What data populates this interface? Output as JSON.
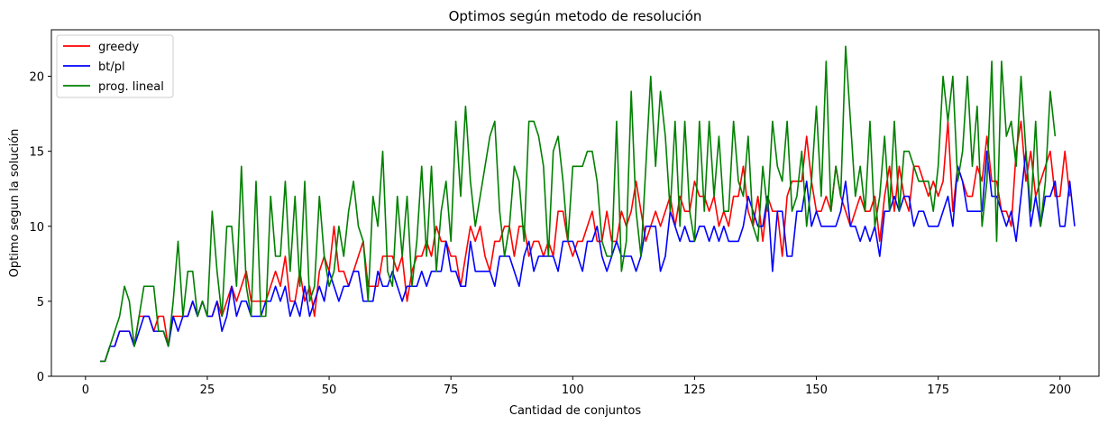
{
  "chart_data": {
    "type": "line",
    "title": "Optimos según metodo de resolución",
    "xlabel": "Cantidad de conjuntos",
    "ylabel": "Optimo segun la solución",
    "xlim": [
      -7,
      208
    ],
    "ylim": [
      0,
      23.1
    ],
    "xticks": [
      0,
      25,
      50,
      75,
      100,
      125,
      150,
      175,
      200
    ],
    "yticks": [
      0,
      5,
      10,
      15,
      20
    ],
    "grid": false,
    "legend_position": "top-left",
    "x_start": 3,
    "series": [
      {
        "name": "greedy",
        "color": "#ff0000",
        "values": [
          1,
          1,
          2,
          2,
          3,
          3,
          3,
          2,
          4,
          4,
          4,
          3,
          4,
          4,
          2,
          4,
          4,
          4,
          4,
          5,
          4,
          5,
          4,
          4,
          5,
          4,
          5,
          6,
          5,
          6,
          7,
          5,
          5,
          5,
          5,
          6,
          7,
          6,
          8,
          5,
          5,
          7,
          5,
          6,
          4,
          7,
          8,
          7,
          10,
          7,
          7,
          6,
          7,
          8,
          9,
          6,
          6,
          6,
          8,
          8,
          8,
          7,
          8,
          5,
          7,
          8,
          8,
          9,
          8,
          10,
          9,
          9,
          8,
          8,
          6,
          8,
          10,
          9,
          10,
          8,
          7,
          9,
          9,
          10,
          10,
          8,
          10,
          10,
          8,
          9,
          9,
          8,
          9,
          8,
          11,
          11,
          9,
          8,
          9,
          9,
          10,
          11,
          9,
          9,
          11,
          9,
          9,
          11,
          10,
          11,
          13,
          11,
          9,
          10,
          11,
          10,
          11,
          12,
          10,
          12,
          11,
          11,
          13,
          12,
          12,
          11,
          12,
          10,
          11,
          10,
          12,
          12,
          14,
          11,
          10,
          12,
          9,
          12,
          11,
          11,
          8,
          12,
          13,
          13,
          13,
          16,
          13,
          11,
          11,
          12,
          11,
          14,
          12,
          11,
          10,
          11,
          12,
          11,
          11,
          12,
          9,
          12,
          14,
          11,
          14,
          12,
          11,
          14,
          14,
          13,
          12,
          13,
          12,
          13,
          17,
          11,
          14,
          13,
          12,
          12,
          14,
          13,
          16,
          13,
          13,
          11,
          11,
          10,
          15,
          17,
          13,
          15,
          12,
          13,
          14,
          15,
          12,
          12,
          15,
          12
        ]
      },
      {
        "name": "bt/pl",
        "color": "#0000ff",
        "values": [
          1,
          1,
          2,
          2,
          3,
          3,
          3,
          2,
          3,
          4,
          4,
          3,
          3,
          3,
          2,
          4,
          3,
          4,
          4,
          5,
          4,
          5,
          4,
          4,
          5,
          3,
          4,
          6,
          4,
          5,
          5,
          4,
          4,
          4,
          5,
          5,
          6,
          5,
          6,
          4,
          5,
          4,
          6,
          4,
          5,
          6,
          5,
          7,
          6,
          5,
          6,
          6,
          7,
          7,
          5,
          5,
          5,
          7,
          6,
          6,
          7,
          6,
          5,
          6,
          6,
          6,
          7,
          6,
          7,
          7,
          7,
          9,
          7,
          7,
          6,
          6,
          9,
          7,
          7,
          7,
          7,
          6,
          8,
          8,
          8,
          7,
          6,
          8,
          9,
          7,
          8,
          8,
          8,
          8,
          7,
          9,
          9,
          9,
          8,
          7,
          9,
          9,
          10,
          8,
          7,
          8,
          9,
          8,
          8,
          8,
          7,
          8,
          10,
          10,
          10,
          7,
          8,
          11,
          10,
          9,
          10,
          9,
          9,
          10,
          10,
          9,
          10,
          9,
          10,
          9,
          9,
          9,
          10,
          12,
          11,
          10,
          10,
          12,
          7,
          11,
          11,
          8,
          8,
          11,
          11,
          13,
          10,
          11,
          10,
          10,
          10,
          10,
          11,
          13,
          10,
          10,
          9,
          10,
          9,
          10,
          8,
          11,
          11,
          12,
          11,
          12,
          12,
          10,
          11,
          11,
          10,
          10,
          10,
          11,
          12,
          10,
          14,
          13,
          11,
          11,
          11,
          11,
          15,
          12,
          12,
          11,
          10,
          11,
          9,
          12,
          15,
          10,
          12,
          10,
          12,
          12,
          13,
          10,
          10,
          13,
          10
        ]
      },
      {
        "name": "prog. lineal",
        "color": "#008000",
        "values": [
          1,
          1,
          2,
          3,
          4,
          6,
          5,
          2,
          4,
          6,
          6,
          6,
          3,
          3,
          2,
          5,
          9,
          4,
          7,
          7,
          4,
          5,
          4,
          11,
          7,
          4,
          10,
          10,
          6,
          14,
          6,
          4,
          13,
          4,
          4,
          12,
          8,
          8,
          13,
          7,
          12,
          6,
          13,
          5,
          6,
          12,
          8,
          6,
          7,
          10,
          8,
          11,
          13,
          10,
          9,
          5,
          12,
          10,
          15,
          7,
          6,
          12,
          8,
          12,
          6,
          9,
          14,
          8,
          14,
          7,
          11,
          13,
          9,
          17,
          12,
          18,
          13,
          10,
          12,
          14,
          16,
          17,
          11,
          8,
          10,
          14,
          13,
          9,
          17,
          17,
          16,
          14,
          8,
          15,
          16,
          13,
          9,
          14,
          14,
          14,
          15,
          15,
          13,
          9,
          8,
          8,
          17,
          7,
          9,
          19,
          11,
          8,
          14,
          20,
          14,
          19,
          16,
          11,
          17,
          10,
          17,
          11,
          9,
          17,
          11,
          17,
          12,
          16,
          11,
          11,
          17,
          13,
          12,
          16,
          10,
          9,
          14,
          11,
          17,
          14,
          13,
          17,
          11,
          12,
          15,
          10,
          13,
          18,
          12,
          21,
          11,
          14,
          12,
          22,
          17,
          12,
          14,
          11,
          17,
          10,
          12,
          16,
          11,
          17,
          11,
          15,
          15,
          14,
          13,
          13,
          13,
          11,
          14,
          20,
          17,
          20,
          13,
          15,
          20,
          14,
          18,
          10,
          13,
          21,
          9,
          21,
          16,
          17,
          14,
          20,
          15,
          11,
          17,
          10,
          13,
          19,
          16
        ]
      }
    ]
  }
}
